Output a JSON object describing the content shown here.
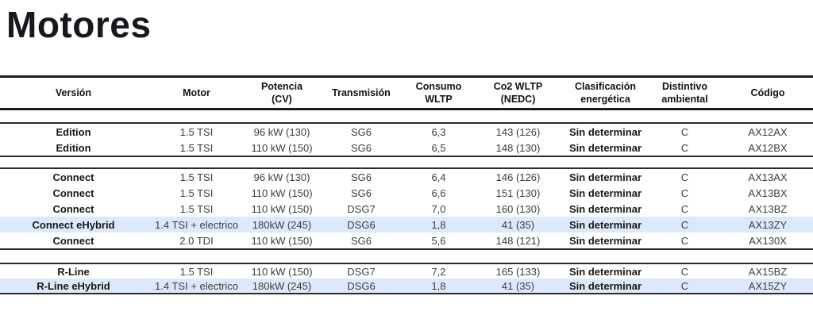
{
  "page": {
    "title": "Motores"
  },
  "colors": {
    "accent": "#17181c",
    "row_highlight": "#dce9f8",
    "body_text": "#3c3d42"
  },
  "table": {
    "columns": [
      {
        "key": "version",
        "label": "Versión",
        "bold_values": true
      },
      {
        "key": "motor",
        "label": "Motor",
        "bold_values": false
      },
      {
        "key": "potencia",
        "label": "Potencia\n(CV)",
        "bold_values": false
      },
      {
        "key": "transmision",
        "label": "Transmisión",
        "bold_values": false
      },
      {
        "key": "consumo",
        "label": "Consumo\nWLTP",
        "bold_values": false
      },
      {
        "key": "co2",
        "label": "Co2 WLTP\n(NEDC)",
        "bold_values": false
      },
      {
        "key": "clasificacion",
        "label": "Clasificación\nenergética",
        "bold_values": true
      },
      {
        "key": "distintivo",
        "label": "Distintivo\nambiental",
        "bold_values": false
      },
      {
        "key": "codigo",
        "label": "Código",
        "bold_values": false
      }
    ],
    "groups": [
      {
        "name": "Edition",
        "rows": [
          {
            "version": "Edition",
            "motor": "1.5 TSI",
            "potencia": "96 kW (130)",
            "transmision": "SG6",
            "consumo": "6,3",
            "co2": "143 (126)",
            "clasificacion": "Sin determinar",
            "distintivo": "C",
            "codigo": "AX12AX",
            "highlighted": false
          },
          {
            "version": "Edition",
            "motor": "1.5 TSI",
            "potencia": "110 kW (150)",
            "transmision": "SG6",
            "consumo": "6,5",
            "co2": "148 (130)",
            "clasificacion": "Sin determinar",
            "distintivo": "C",
            "codigo": "AX12BX",
            "highlighted": false
          }
        ]
      },
      {
        "name": "Connect",
        "rows": [
          {
            "version": "Connect",
            "motor": "1.5 TSI",
            "potencia": "96 kW (130)",
            "transmision": "SG6",
            "consumo": "6,4",
            "co2": "146 (126)",
            "clasificacion": "Sin determinar",
            "distintivo": "C",
            "codigo": "AX13AX",
            "highlighted": false
          },
          {
            "version": "Connect",
            "motor": "1.5 TSI",
            "potencia": "110 kW (150)",
            "transmision": "SG6",
            "consumo": "6,6",
            "co2": "151 (130)",
            "clasificacion": "Sin determinar",
            "distintivo": "C",
            "codigo": "AX13BX",
            "highlighted": false
          },
          {
            "version": "Connect",
            "motor": "1.5 TSI",
            "potencia": "110 kW (150)",
            "transmision": "DSG7",
            "consumo": "7,0",
            "co2": "160 (130)",
            "clasificacion": "Sin determinar",
            "distintivo": "C",
            "codigo": "AX13BZ",
            "highlighted": false
          },
          {
            "version": "Connect eHybrid",
            "motor": "1.4 TSI + electrico",
            "potencia": "180kW (245)",
            "transmision": "DSG6",
            "consumo": "1,8",
            "co2": "41 (35)",
            "clasificacion": "Sin determinar",
            "distintivo": "C",
            "codigo": "AX13ZY",
            "highlighted": true
          },
          {
            "version": "Connect",
            "motor": "2.0 TDI",
            "potencia": "110 kW (150)",
            "transmision": "SG6",
            "consumo": "5,6",
            "co2": "148 (121)",
            "clasificacion": "Sin determinar",
            "distintivo": "C",
            "codigo": "AX130X",
            "highlighted": false
          }
        ]
      },
      {
        "name": "R-Line",
        "rows": [
          {
            "version": "R-Line",
            "motor": "1.5 TSI",
            "potencia": "110 kW (150)",
            "transmision": "DSG7",
            "consumo": "7,2",
            "co2": "165 (133)",
            "clasificacion": "Sin determinar",
            "distintivo": "C",
            "codigo": "AX15BZ",
            "highlighted": false
          },
          {
            "version": "R-Line eHybrid",
            "motor": "1.4 TSI + electrico",
            "potencia": "180kW (245)",
            "transmision": "DSG6",
            "consumo": "1,8",
            "co2": "41 (35)",
            "clasificacion": "Sin determinar",
            "distintivo": "C",
            "codigo": "AX15ZY",
            "highlighted": true
          }
        ]
      }
    ]
  }
}
